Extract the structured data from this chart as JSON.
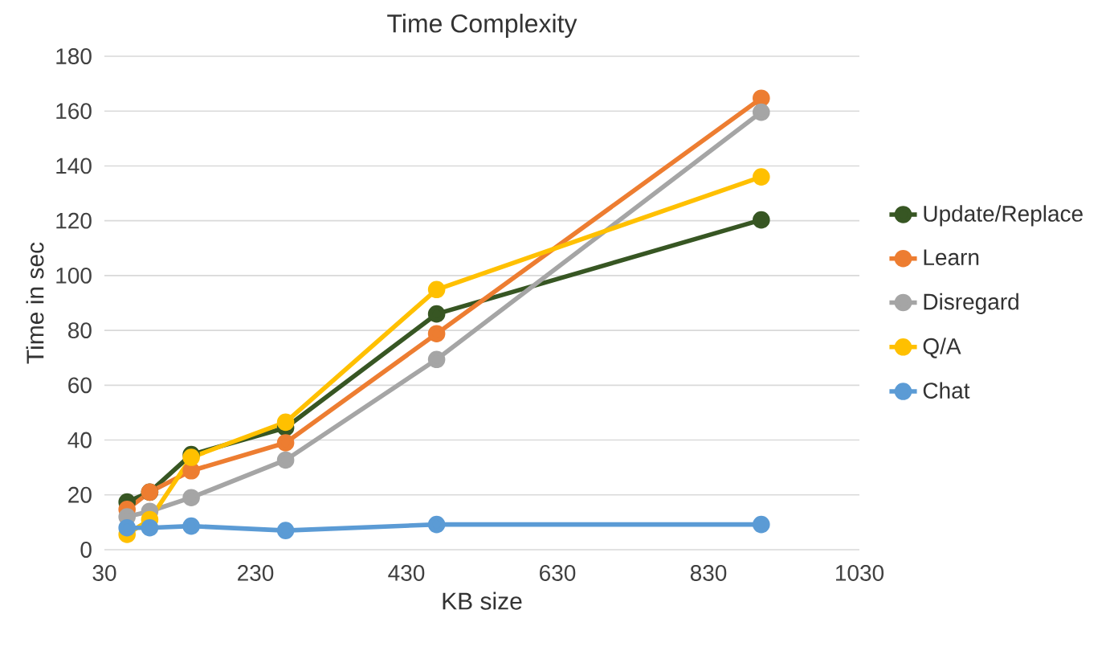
{
  "chart_data": {
    "type": "line",
    "title": "Time Complexity",
    "xlabel": "KB size",
    "ylabel": "Time in sec",
    "x": [
      60,
      90,
      145,
      270,
      470,
      900
    ],
    "series": [
      {
        "name": "Update/Replace",
        "color": "#375623",
        "values": [
          17.4,
          21,
          34.7,
          44.5,
          86,
          120.3
        ]
      },
      {
        "name": "Learn",
        "color": "#ed7d31",
        "values": [
          14.7,
          21,
          28.8,
          39,
          78.8,
          164.7
        ]
      },
      {
        "name": "Disregard",
        "color": "#a5a5a5",
        "values": [
          12,
          14,
          19,
          32.7,
          69.4,
          159.6
        ]
      },
      {
        "name": "Q/A",
        "color": "#ffc000",
        "values": [
          5.6,
          11,
          33.7,
          46.5,
          94.9,
          136
        ]
      },
      {
        "name": "Chat",
        "color": "#5b9bd5",
        "values": [
          8,
          8,
          8.6,
          7,
          9.2,
          9.2
        ]
      }
    ],
    "xlim": [
      30,
      1030
    ],
    "xticks": [
      30,
      230,
      430,
      630,
      830,
      1030
    ],
    "ylim": [
      0,
      180
    ],
    "yticks": [
      0,
      20,
      40,
      60,
      80,
      100,
      120,
      140,
      160,
      180
    ],
    "grid": "y",
    "legend": "right",
    "marker": "circle",
    "line_style": "solid"
  }
}
